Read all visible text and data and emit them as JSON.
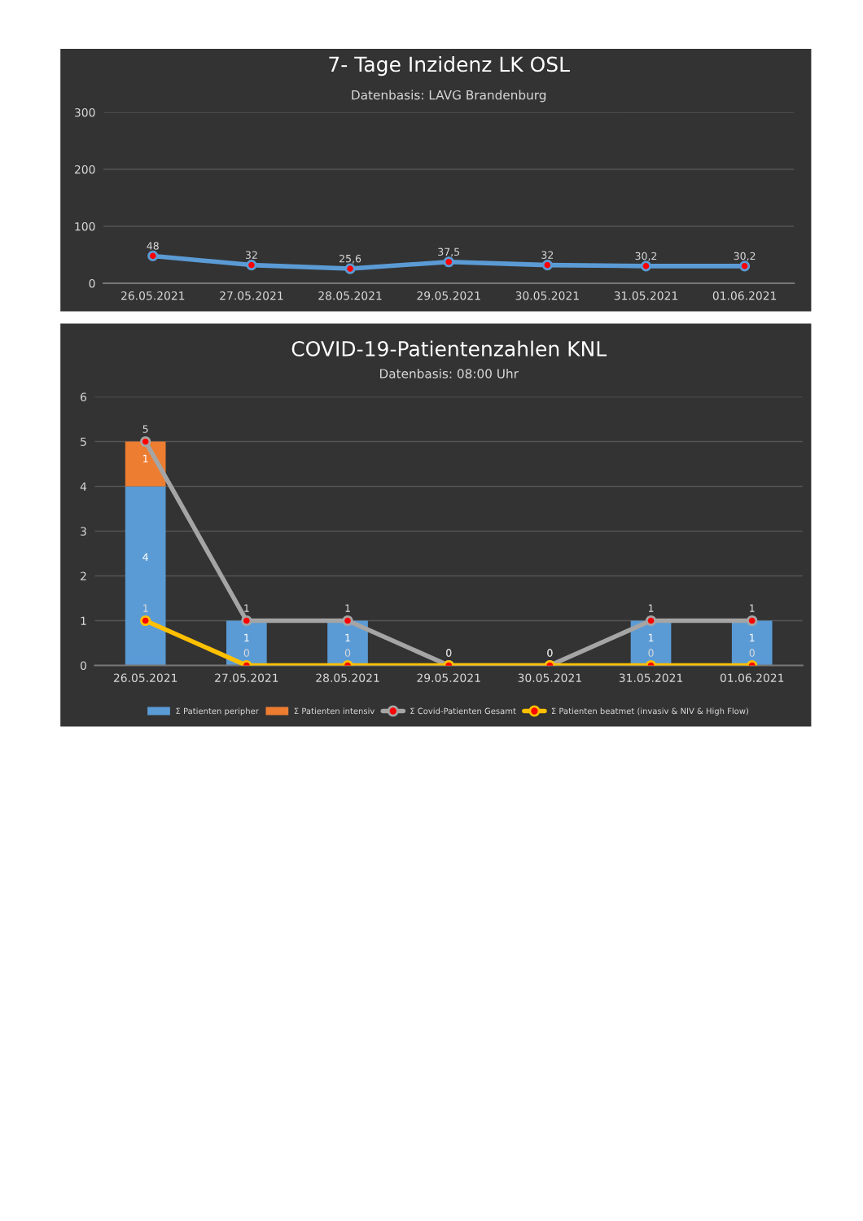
{
  "chart_data": [
    {
      "type": "line",
      "title": "7- Tage Inzidenz LK OSL",
      "subtitle": "Datenbasis: LAVG Brandenburg",
      "categories": [
        "26.05.2021",
        "27.05.2021",
        "28.05.2021",
        "29.05.2021",
        "30.05.2021",
        "31.05.2021",
        "01.06.2021"
      ],
      "series": [
        {
          "color": "#5b9bd5",
          "values": [
            48,
            32,
            25.6,
            37.5,
            32,
            30.2,
            30.2
          ],
          "value_labels": [
            "48",
            "32",
            "25,6",
            "37,5",
            "32",
            "30,2",
            "30,2"
          ]
        }
      ],
      "ylim": [
        0,
        300
      ],
      "yticks": [
        0,
        100,
        200,
        300
      ],
      "grid": "y",
      "marker": "circle",
      "legend": false
    },
    {
      "type": "bar",
      "title": "COVID-19-Patientenzahlen KNL",
      "subtitle": "Datenbasis: 08:00 Uhr",
      "stacked": true,
      "categories": [
        "26.05.2021",
        "27.05.2021",
        "28.05.2021",
        "29.05.2021",
        "30.05.2021",
        "31.05.2021",
        "01.06.2021"
      ],
      "series": [
        {
          "name": "Σ Patienten peripher",
          "color": "#5b9bd5",
          "values": [
            4,
            1,
            1,
            0,
            0,
            1,
            1
          ],
          "value_labels": [
            "4",
            "1",
            "1",
            null,
            null,
            "1",
            "1"
          ]
        },
        {
          "name": "Σ Patienten intensiv",
          "color": "#ed7d31",
          "values": [
            1,
            0,
            0,
            0,
            0,
            0,
            0
          ],
          "value_labels": [
            "1",
            null,
            null,
            null,
            null,
            null,
            null
          ]
        },
        {
          "name": "Σ Covid-Patienten Gesamt",
          "type": "line",
          "color": "#a5a5a5",
          "values": [
            5,
            1,
            1,
            0,
            0,
            1,
            1
          ],
          "value_labels": [
            "5",
            "1",
            "1",
            "0",
            "0",
            "1",
            "1"
          ]
        },
        {
          "name": "Σ Patienten beatmet (invasiv & NIV & High Flow)",
          "type": "line",
          "color": "#ffc000",
          "values": [
            1,
            0,
            0,
            0,
            0,
            0,
            0
          ],
          "value_labels": [
            "1",
            "0",
            "0",
            "0",
            "0",
            "0",
            "0"
          ]
        }
      ],
      "ylim": [
        0,
        6
      ],
      "yticks": [
        0,
        1,
        2,
        3,
        4,
        5,
        6
      ],
      "grid": "y",
      "marker": "circle",
      "legend": "bottom"
    }
  ]
}
